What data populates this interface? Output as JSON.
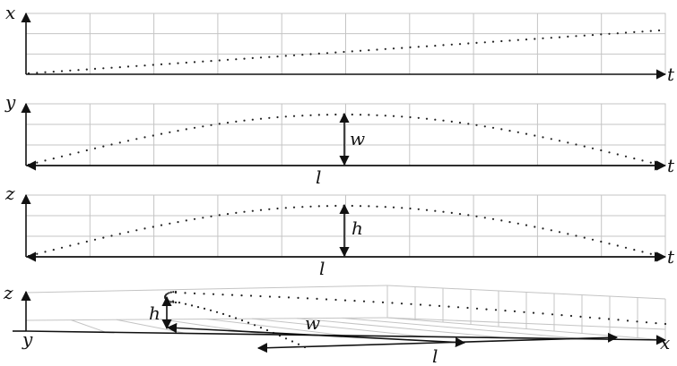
{
  "colors": {
    "ink": "#111111",
    "grid": "#c4c4c4",
    "dots": "#222222"
  },
  "panels": [
    {
      "id": "x-t",
      "vertical_label": "x",
      "horizontal_label": "t",
      "curve": "linear"
    },
    {
      "id": "y-t",
      "vertical_label": "y",
      "horizontal_label": "t",
      "curve": "arch",
      "height_label": "w",
      "length_label": "l"
    },
    {
      "id": "z-t",
      "vertical_label": "z",
      "horizontal_label": "t",
      "curve": "arch",
      "height_label": "h",
      "length_label": "l"
    }
  ],
  "view3d": {
    "vertical_label": "z",
    "left_axis_label": "y",
    "right_axis_label": "x",
    "height_label": "h",
    "width_label": "w",
    "length_label": "l"
  }
}
